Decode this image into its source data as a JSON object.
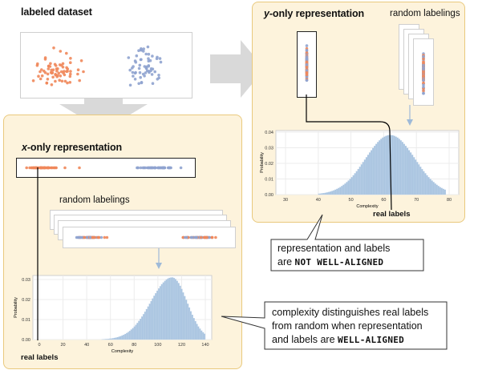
{
  "dataset": {
    "title": "labeled dataset"
  },
  "x_panel": {
    "title_var": "x",
    "title_rest": "-only representation",
    "random_label": "random labelings",
    "real_labels": "real labels",
    "hist": {
      "ylabel": "Probability",
      "xlabel": "Complexity",
      "yticks": [
        "0.00",
        "0.01",
        "0.02",
        "0.03"
      ],
      "xticks": [
        "0",
        "20",
        "40",
        "60",
        "80",
        "100",
        "120",
        "140"
      ]
    }
  },
  "y_panel": {
    "title_var": "y",
    "title_rest": "-only representation",
    "random_label": "random labelings",
    "real_labels": "real labels",
    "hist": {
      "ylabel": "Probability",
      "xlabel": "Complexity",
      "yticks": [
        "0.00",
        "0.01",
        "0.02",
        "0.03",
        "0.04"
      ],
      "xticks": [
        "30",
        "40",
        "50",
        "60",
        "70",
        "80"
      ]
    }
  },
  "callout_y": {
    "line1": "representation and labels",
    "line2_prefix": "are ",
    "line2_emph": "NOT WELL-ALIGNED"
  },
  "callout_x": {
    "line1": "complexity distinguishes real labels",
    "line2": "from random when representation",
    "line3_prefix": "and labels are ",
    "line3_emph": "WELL-ALIGNED"
  },
  "colors": {
    "orange": "#f0875a",
    "blue": "#8fa3cf",
    "hist": "#a9c4e0",
    "panel": "#fdf3dc",
    "panel_border": "#e9c97d",
    "arrow": "#d8d8d8"
  }
}
